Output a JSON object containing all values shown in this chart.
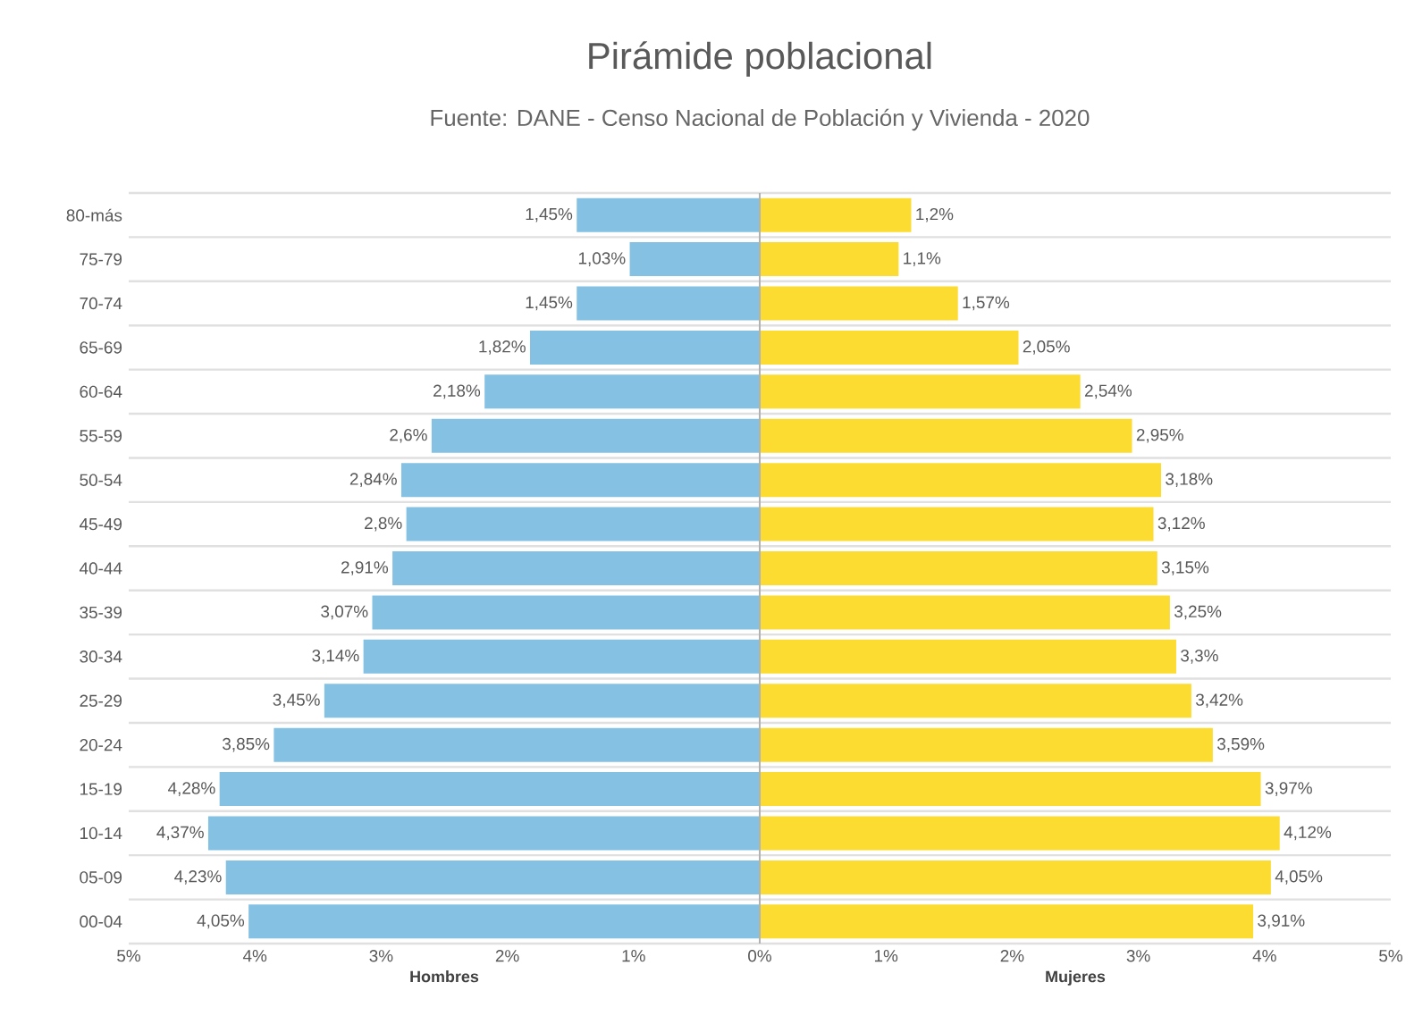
{
  "chart_data": [
    {
      "type": "bar",
      "orientation": "horizontal",
      "title": "Pirámide poblacional",
      "subtitle": "Fuente: DANE - Censo Nacional de Población y Vivienda - 2020",
      "xlabel": "Hombres",
      "categories": [
        "80-más",
        "75-79",
        "70-74",
        "65-69",
        "60-64",
        "55-59",
        "50-54",
        "45-49",
        "40-44",
        "35-39",
        "30-34",
        "25-29",
        "20-24",
        "15-19",
        "10-14",
        "05-09",
        "00-04"
      ],
      "color": "#85c1e3",
      "values": [
        1.45,
        1.03,
        1.45,
        1.82,
        2.18,
        2.6,
        2.84,
        2.8,
        2.91,
        3.07,
        3.14,
        3.45,
        3.85,
        4.28,
        4.37,
        4.23,
        4.05
      ],
      "value_labels": [
        "1,45%",
        "1,03%",
        "1,45%",
        "1,82%",
        "2,18%",
        "2,6%",
        "2,84%",
        "2,8%",
        "2,91%",
        "3,07%",
        "3,14%",
        "3,45%",
        "3,85%",
        "4,28%",
        "4,37%",
        "4,23%",
        "4,05%"
      ],
      "xlim": [
        5,
        0
      ],
      "xticks": [
        {
          "value": 5,
          "label": "5%"
        },
        {
          "value": 4,
          "label": "4%"
        },
        {
          "value": 3,
          "label": "3%"
        },
        {
          "value": 2,
          "label": "2%"
        },
        {
          "value": 1,
          "label": "1%"
        },
        {
          "value": 0,
          "label": "0%"
        }
      ],
      "grid": "y"
    },
    {
      "type": "bar",
      "orientation": "horizontal",
      "xlabel": "Mujeres",
      "categories": [
        null,
        null,
        null,
        null,
        null,
        null,
        null,
        null,
        null,
        null,
        null,
        null,
        null,
        null,
        null,
        null,
        null
      ],
      "color": "#fddc32",
      "values": [
        1.2,
        1.1,
        1.57,
        2.05,
        2.54,
        2.95,
        3.18,
        3.12,
        3.15,
        3.25,
        3.3,
        3.42,
        3.59,
        3.97,
        4.12,
        4.05,
        3.91
      ],
      "value_labels": [
        "1,2%",
        "1,1%",
        "1,57%",
        "2,05%",
        "2,54%",
        "2,95%",
        "3,18%",
        "3,12%",
        "3,15%",
        "3,25%",
        "3,3%",
        "3,42%",
        "3,59%",
        "3,97%",
        "4,12%",
        "4,05%",
        "3,91%"
      ],
      "xlim": [
        0,
        5
      ],
      "xticks": [
        {
          "value": 0,
          "label": null
        },
        {
          "value": 1,
          "label": "1%"
        },
        {
          "value": 2,
          "label": "2%"
        },
        {
          "value": 3,
          "label": "3%"
        },
        {
          "value": 4,
          "label": "4%"
        },
        {
          "value": 5,
          "label": "5%"
        }
      ],
      "grid": "y"
    }
  ]
}
